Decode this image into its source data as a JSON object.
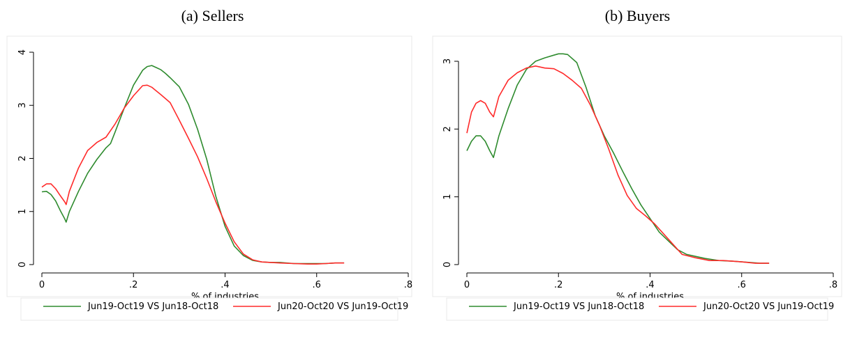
{
  "panels": [
    {
      "caption": "(a) Sellers"
    },
    {
      "caption": "(b) Buyers"
    }
  ],
  "chart_data": [
    {
      "type": "line",
      "title": "(a) Sellers",
      "xlabel": "% of industries",
      "ylabel": "",
      "xlim": [
        0,
        0.8
      ],
      "ylim": [
        0,
        4
      ],
      "xticks": [
        0,
        0.2,
        0.4,
        0.6,
        0.8
      ],
      "xtick_labels": [
        "0",
        ".2",
        ".4",
        ".6",
        ".8"
      ],
      "yticks": [
        0,
        1,
        2,
        3,
        4
      ],
      "ytick_labels": [
        "0",
        "1",
        "2",
        "3",
        "4"
      ],
      "legend_position": "bottom",
      "series": [
        {
          "name": "Jun19-Oct19 VS Jun18-Oct18",
          "color": "#2e8b2e",
          "x": [
            0.0,
            0.01,
            0.02,
            0.03,
            0.04,
            0.05,
            0.053,
            0.06,
            0.08,
            0.1,
            0.12,
            0.14,
            0.15,
            0.16,
            0.18,
            0.2,
            0.22,
            0.23,
            0.24,
            0.25,
            0.26,
            0.27,
            0.28,
            0.3,
            0.32,
            0.34,
            0.36,
            0.38,
            0.4,
            0.42,
            0.44,
            0.46,
            0.48,
            0.5,
            0.52,
            0.55,
            0.58,
            0.6,
            0.62,
            0.64,
            0.66
          ],
          "y": [
            1.37,
            1.38,
            1.32,
            1.2,
            1.02,
            0.86,
            0.8,
            1.0,
            1.38,
            1.72,
            1.98,
            2.2,
            2.28,
            2.5,
            2.95,
            3.38,
            3.66,
            3.73,
            3.75,
            3.71,
            3.67,
            3.6,
            3.52,
            3.35,
            3.02,
            2.55,
            1.98,
            1.28,
            0.72,
            0.35,
            0.17,
            0.08,
            0.05,
            0.04,
            0.04,
            0.02,
            0.02,
            0.02,
            0.02,
            0.03,
            0.03
          ]
        },
        {
          "name": "Jun20-Oct20 VS Jun19-Oct19",
          "color": "#ff2a2a",
          "x": [
            0.0,
            0.01,
            0.02,
            0.03,
            0.04,
            0.05,
            0.053,
            0.06,
            0.08,
            0.1,
            0.12,
            0.14,
            0.16,
            0.18,
            0.2,
            0.22,
            0.23,
            0.24,
            0.26,
            0.28,
            0.3,
            0.32,
            0.34,
            0.36,
            0.38,
            0.4,
            0.42,
            0.44,
            0.46,
            0.48,
            0.5,
            0.52,
            0.55,
            0.58,
            0.6,
            0.62,
            0.64,
            0.66
          ],
          "y": [
            1.46,
            1.52,
            1.52,
            1.43,
            1.3,
            1.18,
            1.13,
            1.38,
            1.82,
            2.15,
            2.3,
            2.4,
            2.65,
            2.95,
            3.18,
            3.37,
            3.38,
            3.34,
            3.2,
            3.05,
            2.72,
            2.38,
            2.03,
            1.62,
            1.18,
            0.78,
            0.43,
            0.2,
            0.09,
            0.05,
            0.04,
            0.03,
            0.02,
            0.01,
            0.01,
            0.02,
            0.03,
            0.03
          ]
        }
      ]
    },
    {
      "type": "line",
      "title": "(b) Buyers",
      "xlabel": "% of industries",
      "ylabel": "",
      "xlim": [
        0,
        0.8
      ],
      "ylim": [
        0,
        3
      ],
      "xticks": [
        0,
        0.2,
        0.4,
        0.6,
        0.8
      ],
      "xtick_labels": [
        "0",
        ".2",
        ".4",
        ".6",
        ".8"
      ],
      "yticks": [
        0,
        1,
        2,
        3
      ],
      "ytick_labels": [
        "0",
        "1",
        "2",
        "3"
      ],
      "legend_position": "bottom",
      "series": [
        {
          "name": "Jun19-Oct19 VS Jun18-Oct18",
          "color": "#2e8b2e",
          "x": [
            0.0,
            0.01,
            0.02,
            0.03,
            0.04,
            0.05,
            0.058,
            0.07,
            0.09,
            0.11,
            0.13,
            0.15,
            0.17,
            0.19,
            0.2,
            0.21,
            0.22,
            0.24,
            0.26,
            0.28,
            0.3,
            0.32,
            0.34,
            0.36,
            0.38,
            0.4,
            0.42,
            0.44,
            0.46,
            0.48,
            0.5,
            0.52,
            0.55,
            0.58,
            0.6,
            0.62,
            0.64,
            0.66
          ],
          "y": [
            1.68,
            1.82,
            1.9,
            1.9,
            1.82,
            1.68,
            1.58,
            1.9,
            2.3,
            2.65,
            2.88,
            3.0,
            3.05,
            3.09,
            3.11,
            3.11,
            3.1,
            2.98,
            2.62,
            2.2,
            1.9,
            1.65,
            1.38,
            1.12,
            0.88,
            0.68,
            0.48,
            0.35,
            0.22,
            0.15,
            0.12,
            0.09,
            0.06,
            0.05,
            0.04,
            0.03,
            0.02,
            0.02
          ]
        },
        {
          "name": "Jun20-Oct20 VS Jun19-Oct19",
          "color": "#ff2a2a",
          "x": [
            0.0,
            0.01,
            0.02,
            0.03,
            0.04,
            0.05,
            0.058,
            0.07,
            0.09,
            0.11,
            0.13,
            0.15,
            0.17,
            0.19,
            0.21,
            0.23,
            0.25,
            0.27,
            0.29,
            0.31,
            0.33,
            0.35,
            0.37,
            0.39,
            0.41,
            0.43,
            0.45,
            0.47,
            0.5,
            0.53,
            0.56,
            0.6,
            0.63,
            0.66
          ],
          "y": [
            1.94,
            2.25,
            2.38,
            2.42,
            2.38,
            2.25,
            2.18,
            2.48,
            2.72,
            2.83,
            2.9,
            2.93,
            2.9,
            2.89,
            2.82,
            2.72,
            2.6,
            2.35,
            2.05,
            1.7,
            1.32,
            1.02,
            0.83,
            0.72,
            0.6,
            0.45,
            0.3,
            0.15,
            0.1,
            0.06,
            0.06,
            0.04,
            0.02,
            0.02
          ]
        }
      ]
    }
  ]
}
